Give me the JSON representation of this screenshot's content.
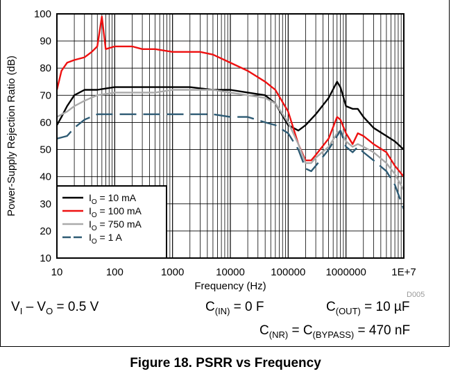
{
  "chart_data": {
    "type": "line",
    "xlabel": "Frequency (Hz)",
    "ylabel": "Power-Supply Rejection Ratio (dB)",
    "xscale": "log",
    "xlim": [
      10,
      10000000
    ],
    "ylim": [
      10,
      100
    ],
    "x_tick_values": [
      10,
      100,
      1000,
      10000,
      100000,
      1000000,
      10000000
    ],
    "x_tick_labels": [
      "10",
      "100",
      "1000",
      "10000",
      "100000",
      "1000000",
      "1E+7"
    ],
    "y_ticks": [
      10,
      20,
      30,
      40,
      50,
      60,
      70,
      80,
      90,
      100
    ],
    "grid": true,
    "legend_position": "bottom-left",
    "watermark": "D005",
    "series": [
      {
        "name": "IO = 10 mA",
        "name_main": "I",
        "name_sub": "O",
        "name_rest": " = 10 mA",
        "color": "#000000",
        "dash": "",
        "points": [
          [
            10,
            59
          ],
          [
            12,
            62
          ],
          [
            15,
            66
          ],
          [
            20,
            70
          ],
          [
            30,
            72
          ],
          [
            50,
            72
          ],
          [
            100,
            73
          ],
          [
            200,
            73
          ],
          [
            500,
            73
          ],
          [
            1000,
            73
          ],
          [
            2000,
            73
          ],
          [
            5000,
            72
          ],
          [
            10000,
            72
          ],
          [
            20000,
            71
          ],
          [
            40000,
            70
          ],
          [
            60000,
            67
          ],
          [
            100000,
            59
          ],
          [
            150000,
            57
          ],
          [
            200000,
            59
          ],
          [
            300000,
            63
          ],
          [
            500000,
            69
          ],
          [
            700000,
            75
          ],
          [
            800000,
            73
          ],
          [
            1000000,
            66
          ],
          [
            1300000,
            65
          ],
          [
            1600000,
            65
          ],
          [
            2000000,
            62
          ],
          [
            3000000,
            58
          ],
          [
            5000000,
            55
          ],
          [
            7000000,
            53
          ],
          [
            10000000,
            50
          ]
        ]
      },
      {
        "name": "IO = 100 mA",
        "name_main": "I",
        "name_sub": "O",
        "name_rest": " = 100 mA",
        "color": "#ee1111",
        "dash": "",
        "points": [
          [
            10,
            72
          ],
          [
            12,
            79
          ],
          [
            15,
            82
          ],
          [
            20,
            83
          ],
          [
            30,
            84
          ],
          [
            40,
            86
          ],
          [
            50,
            88
          ],
          [
            60,
            99
          ],
          [
            70,
            87
          ],
          [
            100,
            88
          ],
          [
            200,
            88
          ],
          [
            300,
            87
          ],
          [
            500,
            87
          ],
          [
            1000,
            86
          ],
          [
            2000,
            86
          ],
          [
            3000,
            86
          ],
          [
            5000,
            85
          ],
          [
            10000,
            82
          ],
          [
            20000,
            79
          ],
          [
            40000,
            75
          ],
          [
            60000,
            72
          ],
          [
            100000,
            64
          ],
          [
            150000,
            52
          ],
          [
            200000,
            46
          ],
          [
            250000,
            46
          ],
          [
            300000,
            48
          ],
          [
            500000,
            54
          ],
          [
            700000,
            62
          ],
          [
            800000,
            61
          ],
          [
            1000000,
            56
          ],
          [
            1300000,
            52
          ],
          [
            1600000,
            56
          ],
          [
            2000000,
            55
          ],
          [
            3000000,
            52
          ],
          [
            5000000,
            49
          ],
          [
            7000000,
            44
          ],
          [
            10000000,
            40
          ]
        ]
      },
      {
        "name": "IO = 750 mA",
        "name_main": "I",
        "name_sub": "O",
        "name_rest": " = 750 mA",
        "color": "#aaaaaa",
        "dash": "",
        "points": [
          [
            10,
            62
          ],
          [
            15,
            64
          ],
          [
            20,
            66
          ],
          [
            30,
            68
          ],
          [
            50,
            70
          ],
          [
            100,
            71
          ],
          [
            200,
            71
          ],
          [
            500,
            71
          ],
          [
            1000,
            72
          ],
          [
            2000,
            72
          ],
          [
            5000,
            72
          ],
          [
            10000,
            71
          ],
          [
            20000,
            70
          ],
          [
            40000,
            69
          ],
          [
            60000,
            67
          ],
          [
            100000,
            60
          ],
          [
            150000,
            52
          ],
          [
            200000,
            45
          ],
          [
            250000,
            45
          ],
          [
            300000,
            47
          ],
          [
            500000,
            51
          ],
          [
            700000,
            56
          ],
          [
            800000,
            57
          ],
          [
            1000000,
            53
          ],
          [
            1300000,
            51
          ],
          [
            1600000,
            52
          ],
          [
            2000000,
            51
          ],
          [
            3000000,
            49
          ],
          [
            5000000,
            45
          ],
          [
            7000000,
            41
          ],
          [
            10000000,
            35
          ]
        ]
      },
      {
        "name": "IO = 1 A",
        "name_main": "I",
        "name_sub": "O",
        "name_rest": " = 1 A",
        "color": "#2d5a73",
        "dash": "24 10",
        "points": [
          [
            10,
            54
          ],
          [
            15,
            55
          ],
          [
            20,
            58
          ],
          [
            30,
            61
          ],
          [
            50,
            63
          ],
          [
            100,
            63
          ],
          [
            200,
            63
          ],
          [
            500,
            63
          ],
          [
            1000,
            63
          ],
          [
            2000,
            63
          ],
          [
            5000,
            63
          ],
          [
            10000,
            62
          ],
          [
            20000,
            62
          ],
          [
            40000,
            60
          ],
          [
            60000,
            59
          ],
          [
            100000,
            56
          ],
          [
            150000,
            50
          ],
          [
            200000,
            43
          ],
          [
            250000,
            42
          ],
          [
            300000,
            44
          ],
          [
            500000,
            50
          ],
          [
            700000,
            55
          ],
          [
            800000,
            57
          ],
          [
            1000000,
            51
          ],
          [
            1300000,
            49
          ],
          [
            1600000,
            51
          ],
          [
            2000000,
            49
          ],
          [
            3000000,
            46
          ],
          [
            5000000,
            42
          ],
          [
            7000000,
            37
          ],
          [
            10000000,
            28
          ]
        ]
      }
    ]
  },
  "conditions": {
    "vi_main": "V",
    "vi_sub": "I",
    "vi_mid": " – V",
    "vo_sub": "O",
    "vi_val": " = 0.5 V",
    "cin_main": "C",
    "cin_sub": "(IN)",
    "cin_val": " = 0 F",
    "cout_main": "C",
    "cout_sub": "(OUT)",
    "cout_val": " = 10 µF",
    "cnr_main": "C",
    "cnr_sub": "(NR)",
    "cnr_mid": " = C",
    "cbyp_sub": "(BYPASS)",
    "cnr_val": " = 470 nF"
  },
  "caption": "Figure 18. PSRR vs Frequency"
}
